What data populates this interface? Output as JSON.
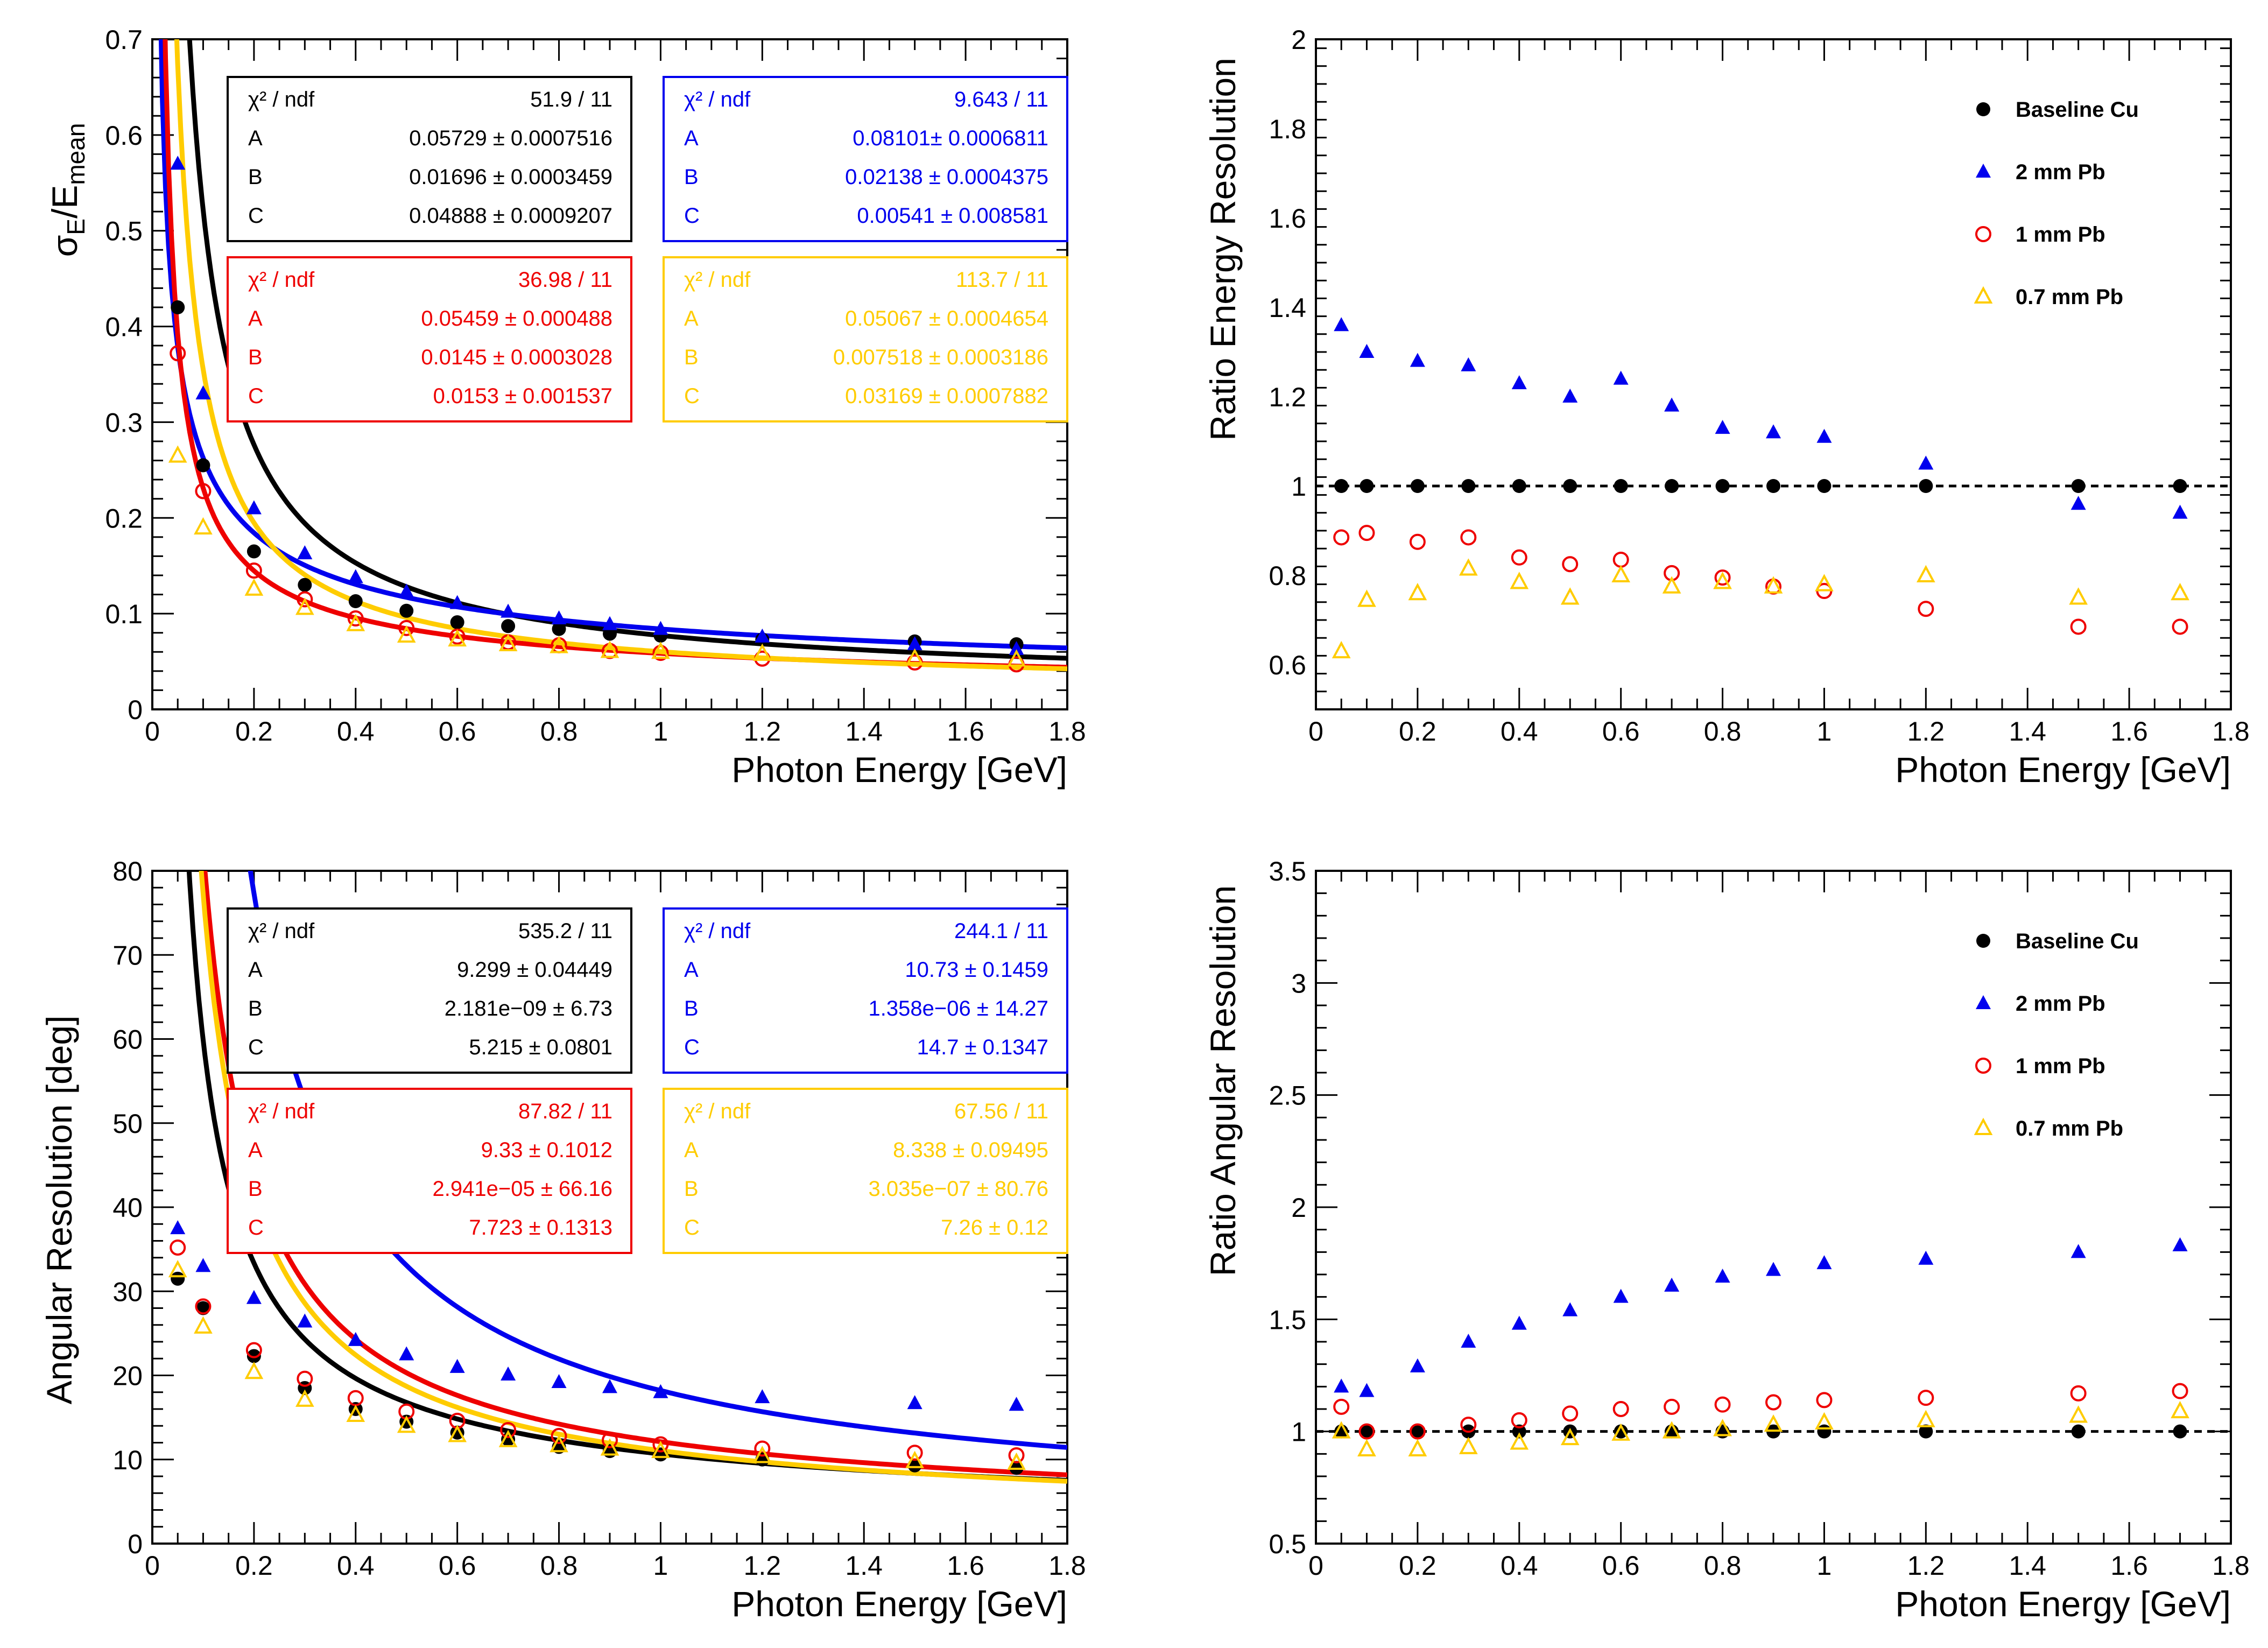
{
  "colors": {
    "baseline": "#000000",
    "pb2": "#0000ee",
    "pb1": "#ee0000",
    "pb07": "#ffcc00",
    "box_black": "#000000",
    "box_blue": "#0000ee",
    "box_red": "#ee0000",
    "box_yellow": "#ffcc00"
  },
  "chart_data": [
    {
      "id": "energy_resolution",
      "type": "scatter",
      "title": "",
      "xlabel": "Photon Energy [GeV]",
      "ylabel_main": "σ",
      "ylabel_sub1": "E",
      "ylabel_mid": "/E",
      "ylabel_sub2": "mean",
      "xlim": [
        0,
        1.8
      ],
      "ylim": [
        0,
        0.7
      ],
      "xticks": [
        "0",
        "0.2",
        "0.4",
        "0.6",
        "0.8",
        "1",
        "1.2",
        "1.4",
        "1.6",
        "1.8"
      ],
      "yticks": [
        "0",
        "0.1",
        "0.2",
        "0.3",
        "0.4",
        "0.5",
        "0.6",
        "0.7"
      ],
      "x": [
        0.05,
        0.1,
        0.2,
        0.3,
        0.4,
        0.5,
        0.6,
        0.7,
        0.8,
        0.9,
        1.0,
        1.2,
        1.5,
        1.7
      ],
      "fit_model": "sqrt((A/sqrt(E))^2 + B^2 + (C/E)^2)",
      "series": [
        {
          "name": "Baseline Cu",
          "marker": "circle",
          "values": [
            0.42,
            0.255,
            0.165,
            0.13,
            0.113,
            0.103,
            0.091,
            0.087,
            0.084,
            0.079,
            0.077,
            0.073,
            0.071,
            0.068
          ],
          "fit": {
            "A": 0.05729,
            "B": 0.01696,
            "C": 0.04888
          }
        },
        {
          "name": "2 mm Pb",
          "marker": "triangle",
          "values": [
            0.57,
            0.33,
            0.21,
            0.163,
            0.138,
            0.123,
            0.111,
            0.102,
            0.095,
            0.089,
            0.084,
            0.076,
            0.068,
            0.063
          ],
          "fit": {
            "A": 0.08101,
            "B": 0.02138,
            "C": 0.00541
          }
        },
        {
          "name": "1 mm Pb",
          "marker": "open-circle",
          "values": [
            0.372,
            0.228,
            0.145,
            0.115,
            0.095,
            0.085,
            0.076,
            0.07,
            0.067,
            0.061,
            0.059,
            0.053,
            0.049,
            0.047
          ],
          "fit": {
            "A": 0.05459,
            "B": 0.0145,
            "C": 0.0153
          }
        },
        {
          "name": "0.7 mm Pb",
          "marker": "open-triangle",
          "values": [
            0.265,
            0.19,
            0.126,
            0.106,
            0.089,
            0.077,
            0.073,
            0.068,
            0.066,
            0.061,
            0.06,
            0.058,
            0.053,
            0.052
          ],
          "fit": {
            "A": 0.05067,
            "B": 0.007518,
            "C": 0.03169
          }
        }
      ],
      "boxes": [
        {
          "color": "box_black",
          "rows": [
            [
              "χ² / ndf",
              "51.9 / 11"
            ],
            [
              "A",
              "0.05729 ± 0.0007516"
            ],
            [
              "B",
              "0.01696 ± 0.0003459"
            ],
            [
              "C",
              "0.04888 ± 0.0009207"
            ]
          ]
        },
        {
          "color": "box_blue",
          "rows": [
            [
              "χ² / ndf",
              "9.643 / 11"
            ],
            [
              "A",
              "0.08101± 0.0006811"
            ],
            [
              "B",
              "0.02138 ± 0.0004375"
            ],
            [
              "C",
              "0.00541 ± 0.008581"
            ]
          ]
        },
        {
          "color": "box_red",
          "rows": [
            [
              "χ² / ndf",
              "36.98 / 11"
            ],
            [
              "A",
              "0.05459 ± 0.000488"
            ],
            [
              "B",
              "0.0145 ± 0.0003028"
            ],
            [
              "C",
              "0.0153 ± 0.001537"
            ]
          ]
        },
        {
          "color": "box_yellow",
          "rows": [
            [
              "χ² / ndf",
              "113.7 / 11"
            ],
            [
              "A",
              "0.05067 ± 0.0004654"
            ],
            [
              "B",
              "0.007518 ± 0.0003186"
            ],
            [
              "C",
              "0.03169 ± 0.0007882"
            ]
          ]
        }
      ]
    },
    {
      "id": "energy_ratio",
      "type": "scatter",
      "xlabel": "Photon Energy [GeV]",
      "ylabel": "Ratio Energy Resolution",
      "xlim": [
        0,
        1.8
      ],
      "ylim": [
        0.5,
        2
      ],
      "xticks": [
        "0",
        "0.2",
        "0.4",
        "0.6",
        "0.8",
        "1",
        "1.2",
        "1.4",
        "1.6",
        "1.8"
      ],
      "yticks": [
        "0.6",
        "0.8",
        "1",
        "1.2",
        "1.4",
        "1.6",
        "1.8",
        "2"
      ],
      "reference_line": 1,
      "x": [
        0.05,
        0.1,
        0.2,
        0.3,
        0.4,
        0.5,
        0.6,
        0.7,
        0.8,
        0.9,
        1.0,
        1.2,
        1.5,
        1.7
      ],
      "legend": [
        "Baseline Cu",
        "2 mm Pb",
        "1 mm Pb",
        "0.7 mm Pb"
      ],
      "series": [
        {
          "name": "Baseline Cu",
          "marker": "circle",
          "values": [
            1,
            1,
            1,
            1,
            1,
            1,
            1,
            1,
            1,
            1,
            1,
            1,
            1,
            1
          ]
        },
        {
          "name": "2 mm Pb",
          "marker": "triangle",
          "values": [
            1.36,
            1.3,
            1.28,
            1.27,
            1.23,
            1.2,
            1.24,
            1.18,
            1.13,
            1.12,
            1.11,
            1.05,
            0.96,
            0.94
          ]
        },
        {
          "name": "1 mm Pb",
          "marker": "open-circle",
          "values": [
            0.885,
            0.895,
            0.875,
            0.885,
            0.84,
            0.825,
            0.835,
            0.805,
            0.795,
            0.775,
            0.765,
            0.725,
            0.685,
            0.685
          ]
        },
        {
          "name": "0.7 mm Pb",
          "marker": "open-triangle",
          "values": [
            0.63,
            0.745,
            0.76,
            0.815,
            0.785,
            0.75,
            0.8,
            0.775,
            0.785,
            0.775,
            0.78,
            0.8,
            0.75,
            0.76
          ]
        }
      ]
    },
    {
      "id": "angular_resolution",
      "type": "scatter",
      "xlabel": "Photon Energy [GeV]",
      "ylabel": "Angular Resolution [deg]",
      "xlim": [
        0,
        1.8
      ],
      "ylim": [
        0,
        80
      ],
      "xticks": [
        "0",
        "0.2",
        "0.4",
        "0.6",
        "0.8",
        "1",
        "1.2",
        "1.4",
        "1.6",
        "1.8"
      ],
      "yticks": [
        "0",
        "10",
        "20",
        "30",
        "40",
        "50",
        "60",
        "70",
        "80"
      ],
      "x": [
        0.05,
        0.1,
        0.2,
        0.3,
        0.4,
        0.5,
        0.6,
        0.7,
        0.8,
        0.9,
        1.0,
        1.2,
        1.5,
        1.7
      ],
      "fit_model": "sqrt((A/sqrt(E))^2 + B^2 + (C/E)^2)",
      "series": [
        {
          "name": "Baseline Cu",
          "marker": "circle",
          "values": [
            31.5,
            28.0,
            22.3,
            18.5,
            16.0,
            14.5,
            13.2,
            12.4,
            11.5,
            11.0,
            10.6,
            10.0,
            9.3,
            9.0
          ],
          "fit": {
            "A": 9.299,
            "B": 0.0,
            "C": 5.215
          }
        },
        {
          "name": "2 mm Pb",
          "marker": "triangle",
          "values": [
            37.5,
            33.0,
            29.2,
            26.4,
            24.2,
            22.5,
            21.0,
            20.1,
            19.2,
            18.6,
            18.0,
            17.4,
            16.7,
            16.5
          ],
          "fit": {
            "A": 10.73,
            "B": 0.0,
            "C": 14.7
          }
        },
        {
          "name": "1 mm Pb",
          "marker": "open-circle",
          "values": [
            35.2,
            28.2,
            23.0,
            19.6,
            17.3,
            15.7,
            14.6,
            13.5,
            12.8,
            12.3,
            11.8,
            11.3,
            10.8,
            10.5
          ],
          "fit": {
            "A": 9.33,
            "B": 0.0,
            "C": 7.723
          }
        },
        {
          "name": "0.7 mm Pb",
          "marker": "open-triangle",
          "values": [
            32.5,
            25.8,
            20.4,
            17.1,
            15.3,
            14.0,
            12.9,
            12.3,
            11.7,
            11.3,
            11.0,
            10.4,
            9.8,
            9.6
          ],
          "fit": {
            "A": 8.338,
            "B": 0.0,
            "C": 7.26
          }
        }
      ],
      "boxes": [
        {
          "color": "box_black",
          "rows": [
            [
              "χ² / ndf",
              "535.2 / 11"
            ],
            [
              "A",
              "9.299 ± 0.04449"
            ],
            [
              "B",
              "2.181e−09 ±  6.73"
            ],
            [
              "C",
              "5.215 ± 0.0801"
            ]
          ]
        },
        {
          "color": "box_blue",
          "rows": [
            [
              "χ² / ndf",
              "244.1 / 11"
            ],
            [
              "A",
              "10.73 ± 0.1459"
            ],
            [
              "B",
              "1.358e−06 ± 14.27"
            ],
            [
              "C",
              "14.7 ± 0.1347"
            ]
          ]
        },
        {
          "color": "box_red",
          "rows": [
            [
              "χ² / ndf",
              "87.82 / 11"
            ],
            [
              "A",
              "9.33 ± 0.1012"
            ],
            [
              "B",
              "2.941e−05 ± 66.16"
            ],
            [
              "C",
              "7.723 ± 0.1313"
            ]
          ]
        },
        {
          "color": "box_yellow",
          "rows": [
            [
              "χ² / ndf",
              "67.56 / 11"
            ],
            [
              "A",
              "8.338 ± 0.09495"
            ],
            [
              "B",
              "3.035e−07 ± 80.76"
            ],
            [
              "C",
              "7.26 ±  0.12"
            ]
          ]
        }
      ]
    },
    {
      "id": "angular_ratio",
      "type": "scatter",
      "xlabel": "Photon Energy [GeV]",
      "ylabel": "Ratio Angular Resolution",
      "xlim": [
        0,
        1.8
      ],
      "ylim": [
        0.5,
        3.5
      ],
      "xticks": [
        "0",
        "0.2",
        "0.4",
        "0.6",
        "0.8",
        "1",
        "1.2",
        "1.4",
        "1.6",
        "1.8"
      ],
      "yticks": [
        "0.5",
        "1",
        "1.5",
        "2",
        "2.5",
        "3",
        "3.5"
      ],
      "reference_line": 1,
      "x": [
        0.05,
        0.1,
        0.2,
        0.3,
        0.4,
        0.5,
        0.6,
        0.7,
        0.8,
        0.9,
        1.0,
        1.2,
        1.5,
        1.7
      ],
      "legend": [
        "Baseline Cu",
        "2 mm Pb",
        "1 mm Pb",
        "0.7 mm Pb"
      ],
      "series": [
        {
          "name": "Baseline Cu",
          "marker": "circle",
          "values": [
            1,
            1,
            1,
            1,
            1,
            1,
            1,
            1,
            1,
            1,
            1,
            1,
            1,
            1
          ]
        },
        {
          "name": "2 mm Pb",
          "marker": "triangle",
          "values": [
            1.2,
            1.18,
            1.29,
            1.4,
            1.48,
            1.54,
            1.6,
            1.65,
            1.69,
            1.72,
            1.75,
            1.77,
            1.8,
            1.83
          ]
        },
        {
          "name": "1 mm Pb",
          "marker": "open-circle",
          "values": [
            1.11,
            1.0,
            1.0,
            1.03,
            1.05,
            1.08,
            1.1,
            1.11,
            1.12,
            1.13,
            1.14,
            1.15,
            1.17,
            1.18
          ]
        },
        {
          "name": "0.7 mm Pb",
          "marker": "open-triangle",
          "values": [
            1.0,
            0.92,
            0.92,
            0.93,
            0.95,
            0.97,
            0.99,
            1.0,
            1.01,
            1.03,
            1.04,
            1.05,
            1.07,
            1.09
          ]
        }
      ]
    }
  ]
}
